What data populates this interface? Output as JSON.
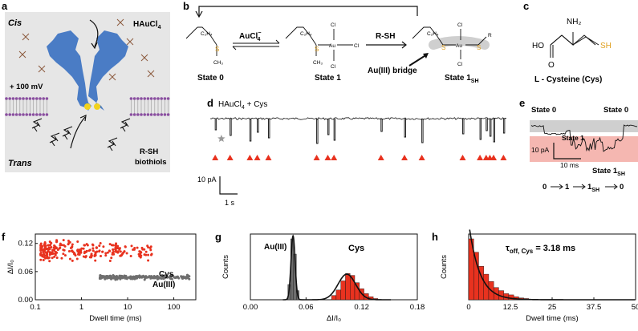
{
  "panels": {
    "a": {
      "label": "a",
      "cis": "Cis",
      "trans": "Trans",
      "reagent": "HAuCl",
      "reagent_sub": "4",
      "voltage": "+ 100 mV",
      "biothiols_1": "R-SH",
      "biothiols_2": "biothiols"
    },
    "b": {
      "label": "b",
      "state0": "State 0",
      "state1": "State 1",
      "state1sh_main": "State 1",
      "state1sh_sub": "SH",
      "arrow1": "AuCl",
      "arrow1_sup": "4",
      "arrow1_sup2": "−",
      "arrow2": "R-SH",
      "bridge": "Au(III) bridge",
      "c2h4": "C₂H₄",
      "ch3": "CH₃",
      "au": "Au",
      "cl": "Cl",
      "s": "S",
      "r": "R"
    },
    "c": {
      "label": "c",
      "nh2": "NH₂",
      "ho": "HO",
      "o": "O",
      "sh": "SH",
      "name": "L - Cysteine (Cys)"
    },
    "d": {
      "label": "d",
      "title": "HAuCl",
      "title_sub": "4",
      "title_tail": " + Cys",
      "scale_y": "10 pA",
      "scale_x": "1 s"
    },
    "e": {
      "label": "e",
      "state0_left": "State 0",
      "state0_right": "State 0",
      "state1": "State 1",
      "state1sh_main": "State 1",
      "state1sh_sub": "SH",
      "scale_y": "10 pA",
      "scale_x": "10 ms",
      "seq_0": "0",
      "seq_1": "1",
      "seq_1sh": "1",
      "seq_1sh_sub": "SH",
      "seq_end": "0"
    },
    "f": {
      "label": "f",
      "legend_cys": "Cys",
      "legend_au": "Au(III)"
    },
    "g": {
      "label": "g",
      "ann_au": "Au(III)",
      "ann_cys": "Cys"
    },
    "h": {
      "label": "h",
      "ann": "τ",
      "ann_sub": "off, Cys",
      "ann_val": " = 3.18 ms"
    }
  },
  "colors": {
    "red": "#e8321f",
    "gray": "#6e6e6e",
    "pore": "#4a7cc5",
    "gold": "#e0a020",
    "membrane": "#8a4fa0",
    "bg_a": "#e6e6e6",
    "band_gray": "#cfcfcf",
    "band_red": "#f5b7b1"
  },
  "chart_data": [
    {
      "panel": "f",
      "type": "scatter",
      "xlabel": "Dwell time (ms)",
      "ylabel": "ΔI/I₀",
      "xscale": "log",
      "xlim": [
        0.1,
        300
      ],
      "ylim": [
        0,
        0.14
      ],
      "xticks": [
        "0.1",
        "1",
        "10",
        "100"
      ],
      "yticks": [
        "0.00",
        "0.06",
        "0.12"
      ],
      "series": [
        {
          "name": "Cys",
          "color": "#e8321f",
          "x_range": [
            0.13,
            35
          ],
          "y_center": 0.105,
          "y_spread": 0.02
        },
        {
          "name": "Au(III)",
          "color": "#6e6e6e",
          "x_range": [
            2.5,
            220
          ],
          "y_center": 0.048,
          "y_spread": 0.004
        }
      ]
    },
    {
      "panel": "g",
      "type": "bar",
      "xlabel": "ΔI/I₀",
      "ylabel": "Counts",
      "xlim": [
        0,
        0.18
      ],
      "xticks": [
        "0.00",
        "0.06",
        "0.12",
        "0.18"
      ],
      "series": [
        {
          "name": "Au(III)",
          "color": "#6e6e6e",
          "centers": [
            0.042,
            0.045,
            0.048,
            0.051
          ],
          "values": [
            0.25,
            1.0,
            0.75,
            0.15
          ]
        },
        {
          "name": "Cys",
          "color": "#e8321f",
          "centers": [
            0.09,
            0.095,
            0.1,
            0.105,
            0.11,
            0.115,
            0.12,
            0.125,
            0.13,
            0.135
          ],
          "values": [
            0.07,
            0.16,
            0.31,
            0.43,
            0.4,
            0.28,
            0.18,
            0.1,
            0.05,
            0.02
          ]
        }
      ],
      "fits": [
        {
          "mu": 0.046,
          "sigma": 0.0022,
          "amp": 1.05
        },
        {
          "mu": 0.104,
          "sigma": 0.0095,
          "amp": 0.42
        }
      ]
    },
    {
      "panel": "h",
      "type": "bar",
      "xlabel": "Dwell time (ms)",
      "ylabel": "Counts",
      "xlim": [
        0,
        50
      ],
      "xticks": [
        "0",
        "12.5",
        "25",
        "37.5",
        "50"
      ],
      "series": [
        {
          "name": "Cys",
          "color": "#e8321f",
          "bin_width": 1.5,
          "centers": [
            0.75,
            2.25,
            3.75,
            5.25,
            6.75,
            8.25,
            9.75,
            11.25,
            12.75,
            14.25,
            15.75,
            17.25
          ],
          "values": [
            1.0,
            0.78,
            0.55,
            0.42,
            0.3,
            0.2,
            0.15,
            0.1,
            0.08,
            0.05,
            0.03,
            0.02
          ]
        }
      ],
      "fit": {
        "tau_ms": 3.18,
        "amp": 1.0
      }
    }
  ],
  "trace_d": {
    "events": [
      0.2,
      0.8,
      1.6,
      1.9,
      2.35,
      4.3,
      4.75,
      5.0,
      6.9,
      7.85,
      8.55,
      10.2,
      10.9,
      11.15,
      11.3,
      11.45,
      11.85
    ],
    "star_at": 0.45,
    "duration_s": 12
  }
}
